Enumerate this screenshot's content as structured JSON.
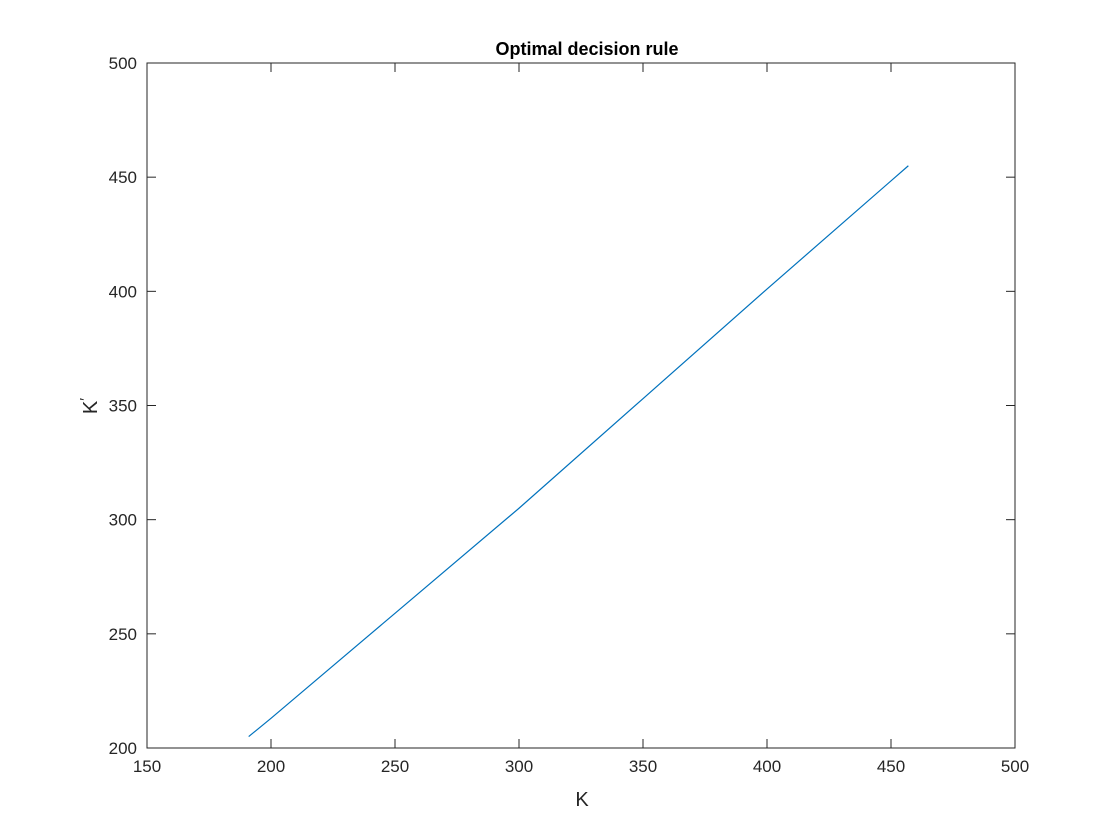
{
  "chart_data": {
    "type": "line",
    "title": "Optimal decision rule",
    "xlabel": "K",
    "ylabel": "K",
    "ylabel_prime": "′",
    "xlim": [
      150,
      500
    ],
    "ylim": [
      200,
      500
    ],
    "xticks": [
      "150",
      "200",
      "250",
      "300",
      "350",
      "400",
      "450",
      "500"
    ],
    "yticks": [
      "200",
      "250",
      "300",
      "350",
      "400",
      "450",
      "500"
    ],
    "grid": false,
    "series": [
      {
        "color": "#0072BD",
        "x": [
          191,
          200,
          250,
          300,
          350,
          400,
          457
        ],
        "y": [
          205,
          213,
          259,
          305,
          353,
          401,
          455
        ]
      }
    ]
  }
}
